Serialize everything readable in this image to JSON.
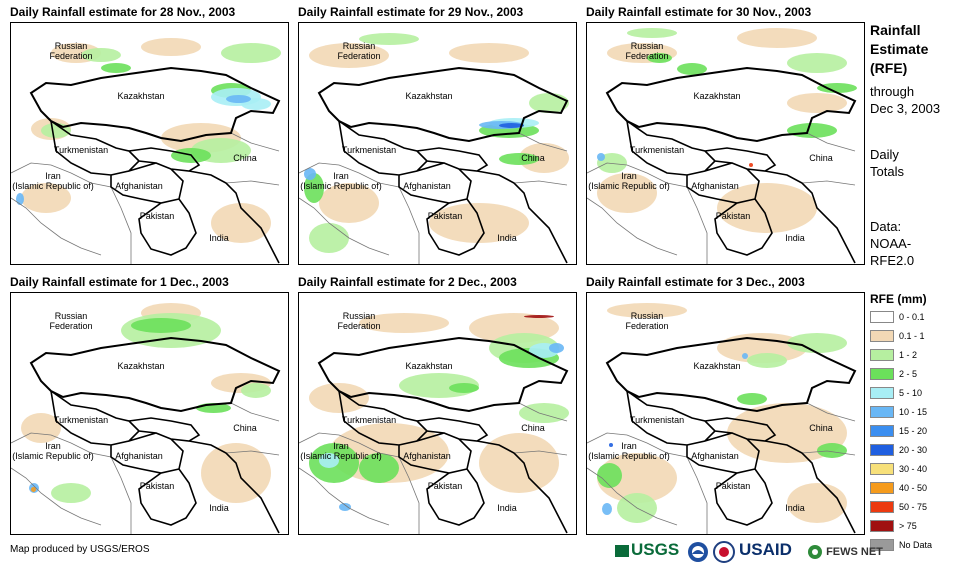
{
  "panels": [
    {
      "title": "Daily Rainfall estimate for 28 Nov., 2003"
    },
    {
      "title": "Daily Rainfall estimate for 29 Nov., 2003"
    },
    {
      "title": "Daily Rainfall estimate for 30 Nov., 2003"
    },
    {
      "title": "Daily Rainfall estimate for 1 Dec., 2003"
    },
    {
      "title": "Daily Rainfall estimate for 2 Dec., 2003"
    },
    {
      "title": "Daily Rainfall estimate for 3 Dec., 2003"
    }
  ],
  "labels": {
    "russia": "Russian\nFederation",
    "kazakhstan": "Kazakhstan",
    "turkmenistan": "Turkmenistan",
    "iran": "Iran\n(Islamic Republic of)",
    "afghanistan": "Afghanistan",
    "pakistan": "Pakistan",
    "china": "China",
    "india": "India"
  },
  "sidebar": {
    "line1": "Rainfall",
    "line2": "Estimate",
    "line3": "(RFE)",
    "line4": "through",
    "line5": "Dec 3, 2003",
    "line6": "Daily",
    "line7": "Totals",
    "line8": "Data:",
    "line9": "NOAA-",
    "line10": "RFE2.0"
  },
  "legend": {
    "title": "RFE (mm)",
    "items": [
      {
        "label": "0 - 0.1",
        "color": "#ffffff"
      },
      {
        "label": "0.1 - 1",
        "color": "#f2d8b5"
      },
      {
        "label": "1 - 2",
        "color": "#b6efa0"
      },
      {
        "label": "2 - 5",
        "color": "#6be05b"
      },
      {
        "label": "5 - 10",
        "color": "#a8eef5"
      },
      {
        "label": "10 - 15",
        "color": "#69b7f5"
      },
      {
        "label": "15 - 20",
        "color": "#3b8ef0"
      },
      {
        "label": "20 - 30",
        "color": "#1f5fe0"
      },
      {
        "label": "30 - 40",
        "color": "#f7e07a"
      },
      {
        "label": "40 - 50",
        "color": "#f59b1c"
      },
      {
        "label": "50 - 75",
        "color": "#ec3a10"
      },
      {
        "label": "> 75",
        "color": "#a01010"
      },
      {
        "label": "No Data",
        "color": "#9a9a9a"
      }
    ]
  },
  "credit": "Map produced by USGS/EROS",
  "logos": {
    "usgs": "USGS",
    "noaa": "NOAA",
    "usaid": "USAID",
    "fewsnet": "FEWS NET"
  }
}
